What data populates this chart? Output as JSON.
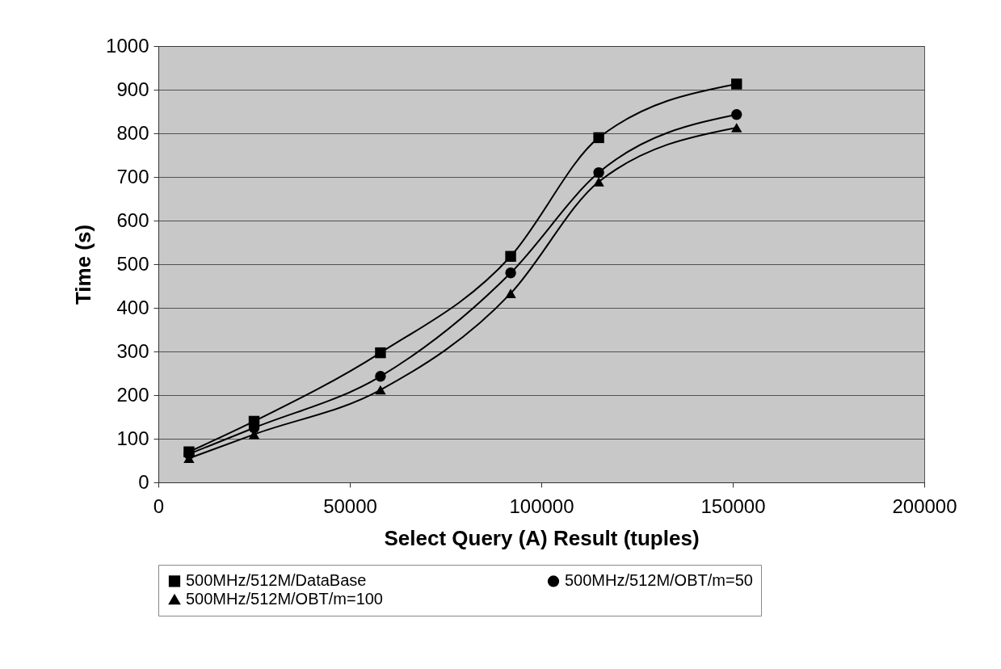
{
  "chart_data": {
    "type": "line",
    "xlabel": "Select Query (A) Result (tuples)",
    "ylabel": "Time (s)",
    "x": [
      8000,
      25000,
      58000,
      92000,
      115000,
      151000
    ],
    "series": [
      {
        "name": "500MHz/512M/DataBase",
        "color": "#000000",
        "marker": "square",
        "values": [
          70,
          140,
          297,
          518,
          790,
          913
        ]
      },
      {
        "name": "500MHz/512M/OBT/m=50",
        "color": "#000000",
        "marker": "circle",
        "values": [
          65,
          125,
          243,
          480,
          710,
          843
        ]
      },
      {
        "name": "500MHz/512M/OBT/m=100",
        "color": "#000000",
        "marker": "triangle",
        "values": [
          55,
          110,
          212,
          433,
          689,
          813
        ]
      }
    ],
    "xlim": [
      0,
      200000
    ],
    "xticks": [
      0,
      50000,
      100000,
      150000,
      200000
    ],
    "ylim": [
      0,
      1000
    ],
    "yticks": [
      0,
      100,
      200,
      300,
      400,
      500,
      600,
      700,
      800,
      900,
      1000
    ],
    "grid": "y",
    "legend": "bottom",
    "line_style": "solid"
  }
}
